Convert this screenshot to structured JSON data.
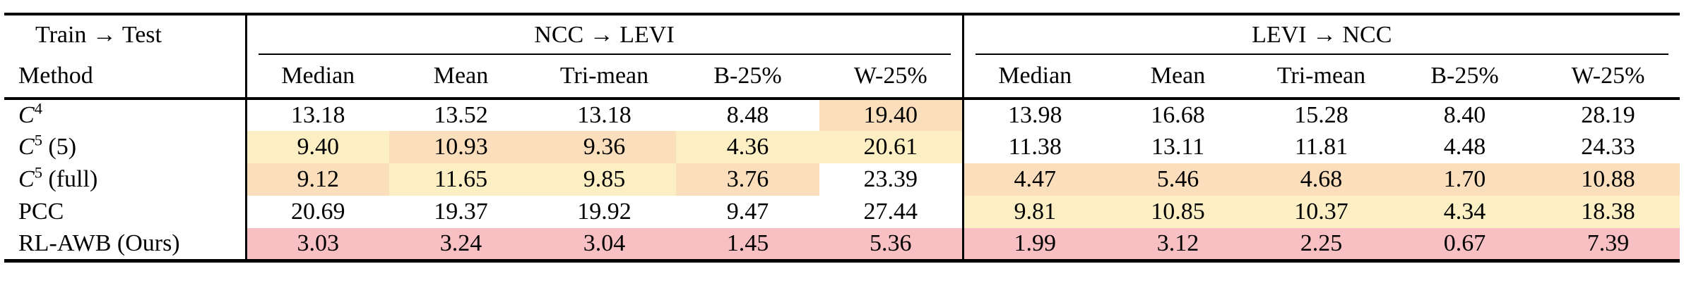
{
  "table": {
    "corner": {
      "train_test": "Train → Test",
      "method": "Method"
    },
    "groups": [
      {
        "label": "NCC → LEVI",
        "columns": [
          "Median",
          "Mean",
          "Tri-mean",
          "B-25%",
          "W-25%"
        ]
      },
      {
        "label": "LEVI → NCC",
        "columns": [
          "Median",
          "Mean",
          "Tri-mean",
          "B-25%",
          "W-25%"
        ]
      }
    ],
    "rows": [
      {
        "method": {
          "italic": "C",
          "sup": "4",
          "rest": ""
        },
        "cells": [
          {
            "v": "13.18",
            "hl": ""
          },
          {
            "v": "13.52",
            "hl": ""
          },
          {
            "v": "13.18",
            "hl": ""
          },
          {
            "v": "8.48",
            "hl": ""
          },
          {
            "v": "19.40",
            "hl": "orange"
          },
          {
            "v": "13.98",
            "hl": ""
          },
          {
            "v": "16.68",
            "hl": ""
          },
          {
            "v": "15.28",
            "hl": ""
          },
          {
            "v": "8.40",
            "hl": ""
          },
          {
            "v": "28.19",
            "hl": ""
          }
        ]
      },
      {
        "method": {
          "italic": "C",
          "sup": "5",
          "rest": " (5)"
        },
        "cells": [
          {
            "v": "9.40",
            "hl": "yellow"
          },
          {
            "v": "10.93",
            "hl": "orange"
          },
          {
            "v": "9.36",
            "hl": "orange"
          },
          {
            "v": "4.36",
            "hl": "yellow"
          },
          {
            "v": "20.61",
            "hl": "yellow"
          },
          {
            "v": "11.38",
            "hl": ""
          },
          {
            "v": "13.11",
            "hl": ""
          },
          {
            "v": "11.81",
            "hl": ""
          },
          {
            "v": "4.48",
            "hl": ""
          },
          {
            "v": "24.33",
            "hl": ""
          }
        ]
      },
      {
        "method": {
          "italic": "C",
          "sup": "5",
          "rest": " (full)"
        },
        "cells": [
          {
            "v": "9.12",
            "hl": "orange"
          },
          {
            "v": "11.65",
            "hl": "yellow"
          },
          {
            "v": "9.85",
            "hl": "yellow"
          },
          {
            "v": "3.76",
            "hl": "orange"
          },
          {
            "v": "23.39",
            "hl": ""
          },
          {
            "v": "4.47",
            "hl": "orange"
          },
          {
            "v": "5.46",
            "hl": "orange"
          },
          {
            "v": "4.68",
            "hl": "orange"
          },
          {
            "v": "1.70",
            "hl": "orange"
          },
          {
            "v": "10.88",
            "hl": "orange"
          }
        ]
      },
      {
        "method": {
          "italic": "",
          "sup": "",
          "rest": "PCC"
        },
        "cells": [
          {
            "v": "20.69",
            "hl": ""
          },
          {
            "v": "19.37",
            "hl": ""
          },
          {
            "v": "19.92",
            "hl": ""
          },
          {
            "v": "9.47",
            "hl": ""
          },
          {
            "v": "27.44",
            "hl": ""
          },
          {
            "v": "9.81",
            "hl": "yellow"
          },
          {
            "v": "10.85",
            "hl": "yellow"
          },
          {
            "v": "10.37",
            "hl": "yellow"
          },
          {
            "v": "4.34",
            "hl": "yellow"
          },
          {
            "v": "18.38",
            "hl": "yellow"
          }
        ]
      },
      {
        "method": {
          "italic": "",
          "sup": "",
          "rest": "RL-AWB (Ours)"
        },
        "cells": [
          {
            "v": "3.03",
            "hl": "pink"
          },
          {
            "v": "3.24",
            "hl": "pink"
          },
          {
            "v": "3.04",
            "hl": "pink"
          },
          {
            "v": "1.45",
            "hl": "pink"
          },
          {
            "v": "5.36",
            "hl": "pink"
          },
          {
            "v": "1.99",
            "hl": "pink"
          },
          {
            "v": "3.12",
            "hl": "pink"
          },
          {
            "v": "2.25",
            "hl": "pink"
          },
          {
            "v": "0.67",
            "hl": "pink"
          },
          {
            "v": "7.39",
            "hl": "pink"
          }
        ]
      }
    ]
  },
  "colors": {
    "yellow": "#FDEFC4",
    "orange": "#FBDEBC",
    "pink": "#F8C0C2"
  }
}
